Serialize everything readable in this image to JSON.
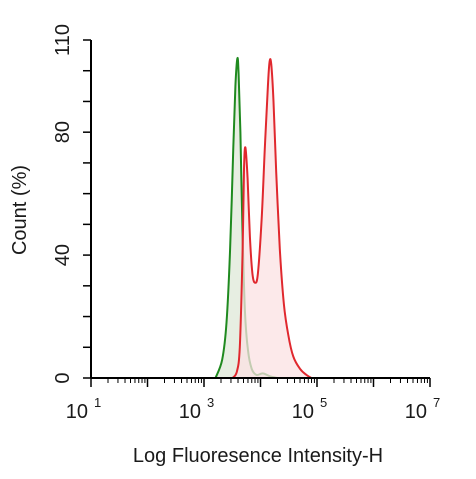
{
  "chart_data": {
    "type": "area",
    "title": "",
    "xlabel": "Log Fluoresence Intensity-H",
    "ylabel": "Count  (%)",
    "x_scale": "log",
    "xlim": [
      10,
      10000000
    ],
    "ylim": [
      0,
      110
    ],
    "x_ticks": [
      {
        "base": "10",
        "exp": "1"
      },
      {
        "base": "10",
        "exp": "3"
      },
      {
        "base": "10",
        "exp": "5"
      },
      {
        "base": "10",
        "exp": "7"
      }
    ],
    "y_ticks": [
      "0",
      "40",
      "80",
      "110"
    ],
    "grid": false,
    "legend": "none",
    "series": [
      {
        "color": "#1f8a1f",
        "fill": "#dfe8d8",
        "x": [
          1600,
          2100,
          2500,
          2900,
          3300,
          3600,
          3900,
          4100,
          4400,
          4800,
          5300,
          6000,
          7000,
          8500,
          11000,
          15000,
          20000
        ],
        "y": [
          0,
          6,
          18,
          42,
          75,
          95,
          104,
          99,
          80,
          48,
          22,
          9,
          3,
          1,
          1.5,
          0.5,
          0
        ]
      },
      {
        "color": "#e0282e",
        "fill": "#fbe1e3",
        "x": [
          3200,
          3800,
          4300,
          4800,
          5100,
          5400,
          5900,
          6500,
          7200,
          8000,
          9000,
          10500,
          12000,
          13500,
          14500,
          15500,
          17000,
          19000,
          22000,
          26000,
          31000,
          38000,
          50000,
          65000,
          80000
        ],
        "y": [
          0,
          2,
          10,
          40,
          68,
          75,
          65,
          46,
          34,
          31,
          34,
          52,
          76,
          95,
          103,
          102,
          90,
          67,
          42,
          24,
          14,
          7,
          3,
          1,
          0
        ]
      }
    ]
  }
}
